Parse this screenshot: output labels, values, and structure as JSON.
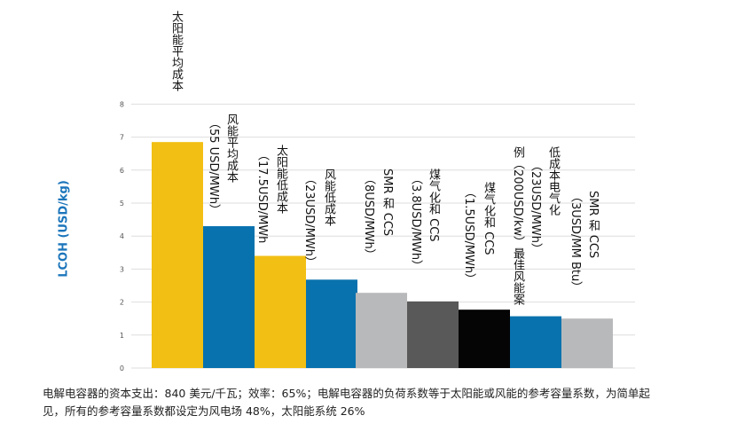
{
  "chart_data": {
    "type": "bar",
    "ylabel": "LCOH (USD/kg)",
    "ylim": [
      0,
      8
    ],
    "yticks": [
      "0",
      "1",
      "2",
      "3",
      "4",
      "5",
      "6",
      "7",
      "8"
    ],
    "grid": true,
    "categories": [
      {
        "main": "太阳能平均成本",
        "sub": ""
      },
      {
        "main": "风能平均成本",
        "sub": "（55 USD/MWh）"
      },
      {
        "main": "太阳能低成本",
        "sub": "（17.5USD/MWh"
      },
      {
        "main": "风能低成本",
        "sub": "（23USD/MWh）"
      },
      {
        "main": "SMR 和 CCS",
        "sub": "（8USD/MWh）"
      },
      {
        "main": "煤气化和 CCS",
        "sub": "（3.8USD/MWh）"
      },
      {
        "main": "煤气化和 CCS",
        "sub": "（1.5USD/MWh）"
      },
      {
        "main": "低成本电气化",
        "sub": "例（200USD/kw）最佳风能案",
        "sub2": "（23USD/MWh）"
      },
      {
        "main": "SMR 和 CCS",
        "sub": "（3USD/MM Btu）"
      }
    ],
    "values": [
      6.85,
      4.3,
      3.4,
      2.68,
      2.28,
      2.02,
      1.77,
      1.57,
      1.5
    ],
    "colors": [
      "#f2bf14",
      "#0872ae",
      "#f2bf14",
      "#0872ae",
      "#b8b9bb",
      "#595959",
      "#050505",
      "#0872ae",
      "#b8b9bb"
    ]
  },
  "caption": "电解电容器的资本支出：840 美元/千瓦；效率：65%；电解电容器的负荷系数等于太阳能或风能的参考容量系数，为简单起见，所有的参考容量系数都设定为风电场 48%，太阳能系统 26%"
}
